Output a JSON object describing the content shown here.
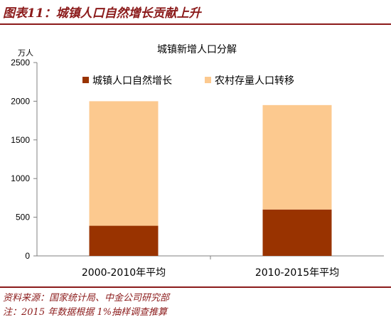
{
  "figure_title": "图表11：城镇人口自然增长贡献上升",
  "source_note": "资料来源：国家统计局、中金公司研究部",
  "footnote": "注：2015 年数据根据 1%抽样调查推算",
  "chart_data": {
    "type": "bar",
    "stacked": true,
    "title": "城镇新增人口分解",
    "unit": "万人",
    "categories": [
      "2000-2010年平均",
      "2010-2015年平均"
    ],
    "series": [
      {
        "name": "城镇人口自然增长",
        "values": [
          390,
          600
        ],
        "color": "#993300"
      },
      {
        "name": "农村存量人口转移",
        "values": [
          1610,
          1350
        ],
        "color": "#fcc98f"
      }
    ],
    "ylim": [
      0,
      2500
    ],
    "yticks": [
      0,
      500,
      1000,
      1500,
      2000,
      2500
    ],
    "grid": false,
    "legend": "top"
  }
}
